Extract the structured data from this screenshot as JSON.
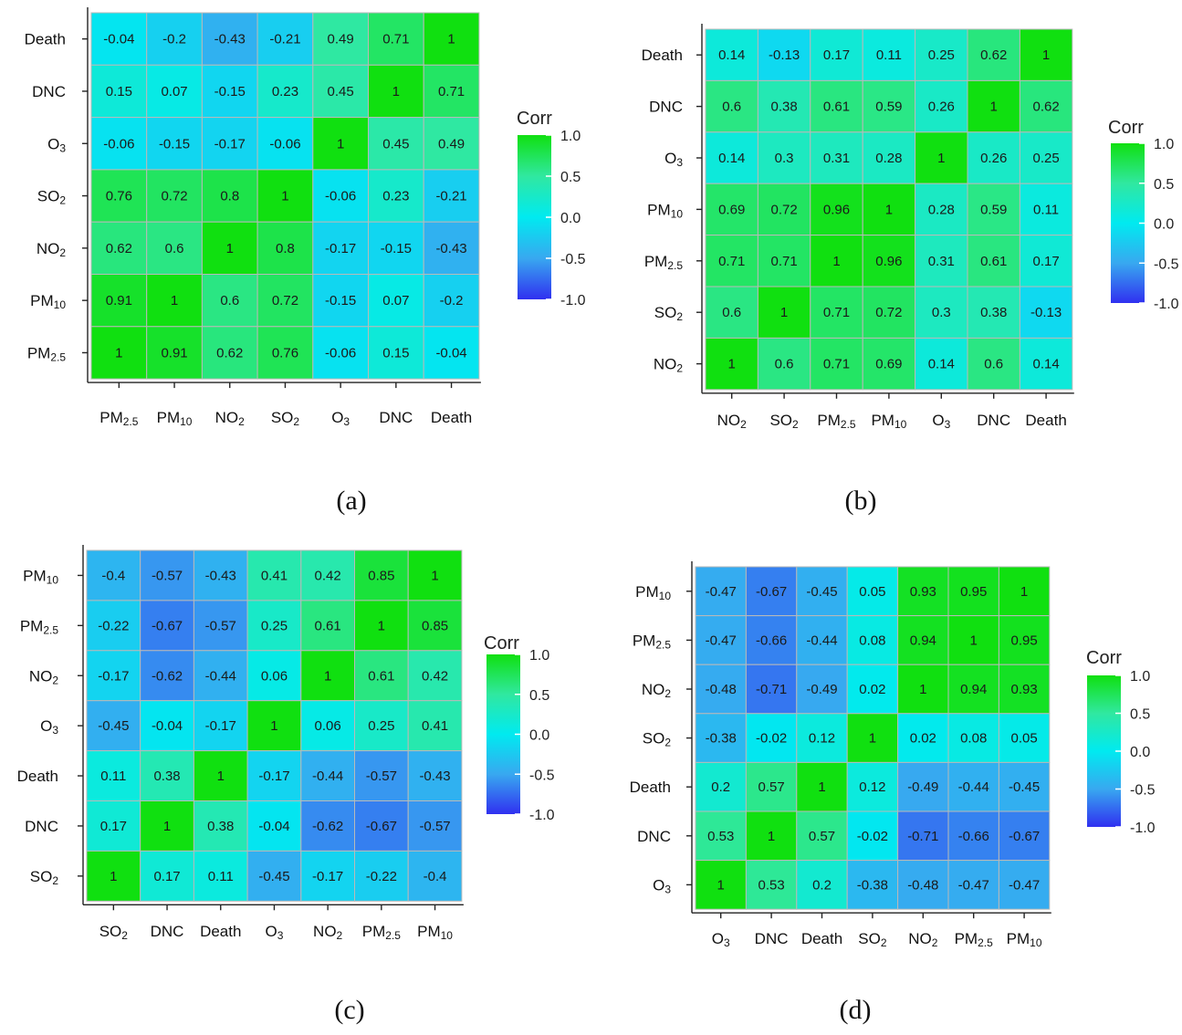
{
  "colors": {
    "neg1": "#3030f0",
    "neg05": "#38a8f0",
    "zero": "#00eaf0",
    "pos05": "#30e8a0",
    "pos1": "#10e010"
  },
  "chart_data": [
    {
      "type": "heatmap",
      "caption": "(a)",
      "x_categories": [
        "PM2.5",
        "PM10",
        "NO2",
        "SO2",
        "O3",
        "DNC",
        "Death"
      ],
      "y_categories_top_to_bottom": [
        "Death",
        "DNC",
        "O3",
        "SO2",
        "NO2",
        "PM10",
        "PM2.5"
      ],
      "values_top_to_bottom": [
        [
          "-0.04",
          "-0.2",
          "-0.43",
          "-0.21",
          "0.49",
          "0.71",
          "1"
        ],
        [
          "0.15",
          "0.07",
          "-0.15",
          "0.23",
          "0.45",
          "1",
          "0.71"
        ],
        [
          "-0.06",
          "-0.15",
          "-0.17",
          "-0.06",
          "1",
          "0.45",
          "0.49"
        ],
        [
          "0.76",
          "0.72",
          "0.8",
          "1",
          "-0.06",
          "0.23",
          "-0.21"
        ],
        [
          "0.62",
          "0.6",
          "1",
          "0.8",
          "-0.17",
          "-0.15",
          "-0.43"
        ],
        [
          "0.91",
          "1",
          "0.6",
          "0.72",
          "-0.15",
          "0.07",
          "-0.2"
        ],
        [
          "1",
          "0.91",
          "0.62",
          "0.76",
          "-0.06",
          "0.15",
          "-0.04"
        ]
      ],
      "legend": {
        "title": "Corr",
        "ticks": [
          "1.0",
          "0.5",
          "0.0",
          "-0.5",
          "-1.0"
        ]
      }
    },
    {
      "type": "heatmap",
      "caption": "(b)",
      "x_categories": [
        "NO2",
        "SO2",
        "PM2.5",
        "PM10",
        "O3",
        "DNC",
        "Death"
      ],
      "y_categories_top_to_bottom": [
        "Death",
        "DNC",
        "O3",
        "PM10",
        "PM2.5",
        "SO2",
        "NO2"
      ],
      "values_top_to_bottom": [
        [
          "0.14",
          "-0.13",
          "0.17",
          "0.11",
          "0.25",
          "0.62",
          "1"
        ],
        [
          "0.6",
          "0.38",
          "0.61",
          "0.59",
          "0.26",
          "1",
          "0.62"
        ],
        [
          "0.14",
          "0.3",
          "0.31",
          "0.28",
          "1",
          "0.26",
          "0.25"
        ],
        [
          "0.69",
          "0.72",
          "0.96",
          "1",
          "0.28",
          "0.59",
          "0.11"
        ],
        [
          "0.71",
          "0.71",
          "1",
          "0.96",
          "0.31",
          "0.61",
          "0.17"
        ],
        [
          "0.6",
          "1",
          "0.71",
          "0.72",
          "0.3",
          "0.38",
          "-0.13"
        ],
        [
          "1",
          "0.6",
          "0.71",
          "0.69",
          "0.14",
          "0.6",
          "0.14"
        ]
      ],
      "legend": {
        "title": "Corr",
        "ticks": [
          "1.0",
          "0.5",
          "0.0",
          "-0.5",
          "-1.0"
        ]
      }
    },
    {
      "type": "heatmap",
      "caption": "(c)",
      "x_categories": [
        "SO2",
        "DNC",
        "Death",
        "O3",
        "NO2",
        "PM2.5",
        "PM10"
      ],
      "y_categories_top_to_bottom": [
        "PM10",
        "PM2.5",
        "NO2",
        "O3",
        "Death",
        "DNC",
        "SO2"
      ],
      "values_top_to_bottom": [
        [
          "-0.4",
          "-0.57",
          "-0.43",
          "0.41",
          "0.42",
          "0.85",
          "1"
        ],
        [
          "-0.22",
          "-0.67",
          "-0.57",
          "0.25",
          "0.61",
          "1",
          "0.85"
        ],
        [
          "-0.17",
          "-0.62",
          "-0.44",
          "0.06",
          "1",
          "0.61",
          "0.42"
        ],
        [
          "-0.45",
          "-0.04",
          "-0.17",
          "1",
          "0.06",
          "0.25",
          "0.41"
        ],
        [
          "0.11",
          "0.38",
          "1",
          "-0.17",
          "-0.44",
          "-0.57",
          "-0.43"
        ],
        [
          "0.17",
          "1",
          "0.38",
          "-0.04",
          "-0.62",
          "-0.67",
          "-0.57"
        ],
        [
          "1",
          "0.17",
          "0.11",
          "-0.45",
          "-0.17",
          "-0.22",
          "-0.4"
        ]
      ],
      "legend": {
        "title": "Corr",
        "ticks": [
          "1.0",
          "0.5",
          "0.0",
          "-0.5",
          "-1.0"
        ]
      }
    },
    {
      "type": "heatmap",
      "caption": "(d)",
      "x_categories": [
        "O3",
        "DNC",
        "Death",
        "SO2",
        "NO2",
        "PM2.5",
        "PM10"
      ],
      "y_categories_top_to_bottom": [
        "PM10",
        "PM2.5",
        "NO2",
        "SO2",
        "Death",
        "DNC",
        "O3"
      ],
      "values_top_to_bottom": [
        [
          "-0.47",
          "-0.67",
          "-0.45",
          "0.05",
          "0.93",
          "0.95",
          "1"
        ],
        [
          "-0.47",
          "-0.66",
          "-0.44",
          "0.08",
          "0.94",
          "1",
          "0.95"
        ],
        [
          "-0.48",
          "-0.71",
          "-0.49",
          "0.02",
          "1",
          "0.94",
          "0.93"
        ],
        [
          "-0.38",
          "-0.02",
          "0.12",
          "1",
          "0.02",
          "0.08",
          "0.05"
        ],
        [
          "0.2",
          "0.57",
          "1",
          "0.12",
          "-0.49",
          "-0.44",
          "-0.45"
        ],
        [
          "0.53",
          "1",
          "0.57",
          "-0.02",
          "-0.71",
          "-0.66",
          "-0.67"
        ],
        [
          "1",
          "0.53",
          "0.2",
          "-0.38",
          "-0.48",
          "-0.47",
          "-0.47"
        ]
      ],
      "legend": {
        "title": "Corr",
        "ticks": [
          "1.0",
          "0.5",
          "0.0",
          "-0.5",
          "-1.0"
        ]
      }
    }
  ]
}
